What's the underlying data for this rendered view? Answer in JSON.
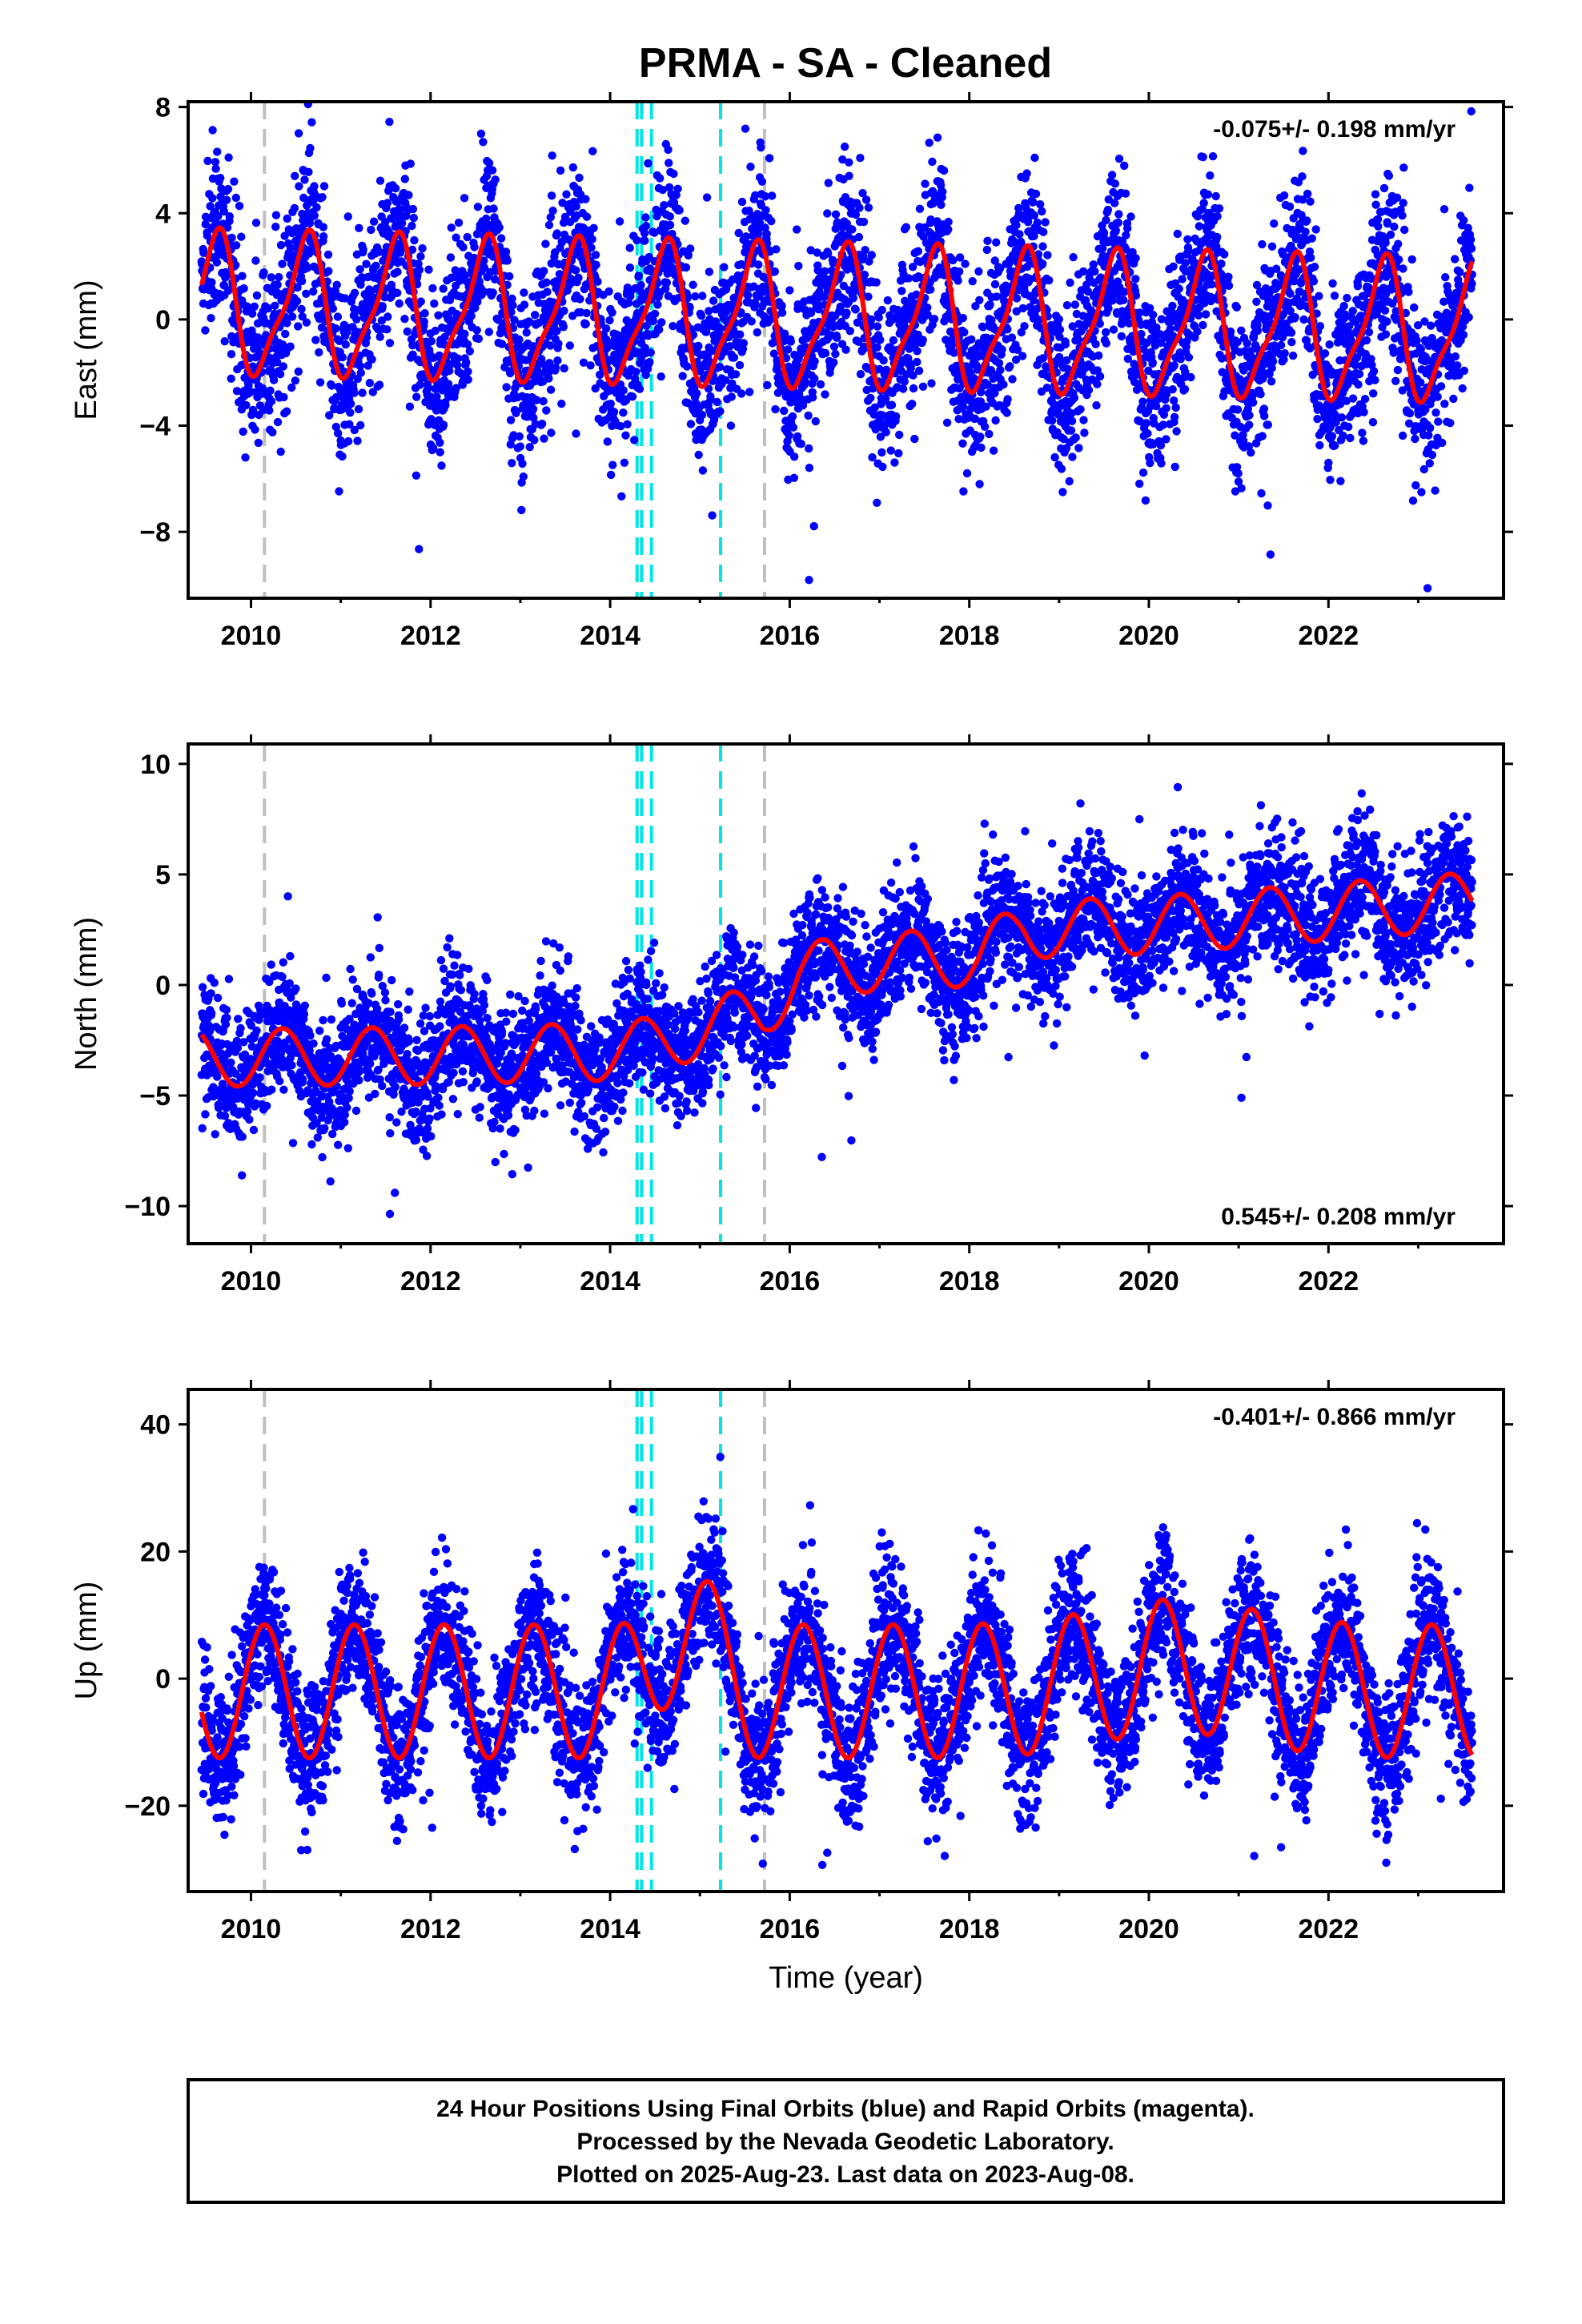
{
  "chart_data": [
    {
      "type": "scatter",
      "panel": "east",
      "ylabel": "East (mm)",
      "xlabel": "",
      "ylim": [
        -10.5,
        8.2
      ],
      "yticks": [
        -8,
        -4,
        0,
        4,
        8
      ],
      "xlim": [
        2009.3,
        2023.95
      ],
      "xticks": [
        2010,
        2012,
        2014,
        2016,
        2018,
        2020,
        2022
      ],
      "rate_label": "-0.075+/- 0.198 mm/yr",
      "rate_position": "top-right",
      "series": [
        {
          "role": "daily positions",
          "color": "#0000ff"
        },
        {
          "role": "model fit",
          "color": "#ff0000",
          "model": {
            "mean": 0,
            "trend": -0.075,
            "annual_amp": 2.5,
            "annual_phase": 0.6,
            "semiannual_amp": 0.7,
            "semiannual_phase": 0.2,
            "noise": 1.6
          }
        }
      ]
    },
    {
      "type": "scatter",
      "panel": "north",
      "ylabel": "North (mm)",
      "xlabel": "",
      "ylim": [
        -11.7,
        10.9
      ],
      "yticks": [
        -10,
        -5,
        0,
        5,
        10
      ],
      "xlim": [
        2009.3,
        2023.95
      ],
      "xticks": [
        2010,
        2012,
        2014,
        2016,
        2018,
        2020,
        2022
      ],
      "rate_label": "0.545+/- 0.208 mm/yr",
      "rate_position": "bottom-right",
      "series": [
        {
          "role": "daily positions",
          "color": "#0000ff"
        },
        {
          "role": "model fit",
          "color": "#ff0000",
          "model": {
            "levels": [
              [
                2009.4,
                -3.3
              ],
              [
                2012.0,
                -3.2
              ],
              [
                2014.2,
                -3.0
              ],
              [
                2015.7,
                -1.2
              ],
              [
                2016.1,
                0.5
              ],
              [
                2016.4,
                0.8
              ],
              [
                2017.5,
                1.2
              ],
              [
                2018.1,
                1.2
              ],
              [
                2018.6,
                2.5
              ],
              [
                2020.0,
                2.7
              ],
              [
                2021.0,
                3.0
              ],
              [
                2023.6,
                3.8
              ]
            ],
            "annual_amp": 1.3,
            "annual_phase": 0.35,
            "noise": 1.4
          }
        }
      ]
    },
    {
      "type": "scatter",
      "panel": "up",
      "ylabel": "Up (mm)",
      "xlabel": "Time (year)",
      "ylim": [
        -33.5,
        45.5
      ],
      "yticks": [
        -20,
        0,
        20,
        40
      ],
      "xlim": [
        2009.3,
        2023.95
      ],
      "xticks": [
        2010,
        2012,
        2014,
        2016,
        2018,
        2020,
        2022
      ],
      "rate_label": "-0.401+/- 0.866 mm/yr",
      "rate_position": "top-right",
      "series": [
        {
          "role": "daily positions",
          "color": "#0000ff"
        },
        {
          "role": "model fit",
          "color": "#ff0000",
          "model": {
            "mean": -2,
            "annual_amp": 10.5,
            "annual_phase": 0.15,
            "bumps": [
              [
                2014.85,
                12,
                0.35
              ],
              [
                2020.3,
                4,
                1.2
              ]
            ],
            "noise": 5.5
          }
        }
      ]
    }
  ],
  "figure": {
    "title": "PRMA  - SA - Cleaned",
    "event_lines": [
      {
        "year": 2010.15,
        "color": "#c0c0c0"
      },
      {
        "year": 2014.3,
        "color": "#00e5e5"
      },
      {
        "year": 2014.35,
        "color": "#00e5e5"
      },
      {
        "year": 2014.46,
        "color": "#00e5e5"
      },
      {
        "year": 2015.23,
        "color": "#00e5e5"
      },
      {
        "year": 2015.72,
        "color": "#c0c0c0"
      }
    ],
    "data_span": [
      2009.45,
      2023.6
    ]
  },
  "footer": {
    "line1": "24 Hour Positions Using Final Orbits (blue) and Rapid Orbits (magenta).",
    "line2": "Processed by the Nevada Geodetic Laboratory.",
    "line3": "Plotted on 2025-Aug-23. Last data on 2023-Aug-08."
  }
}
